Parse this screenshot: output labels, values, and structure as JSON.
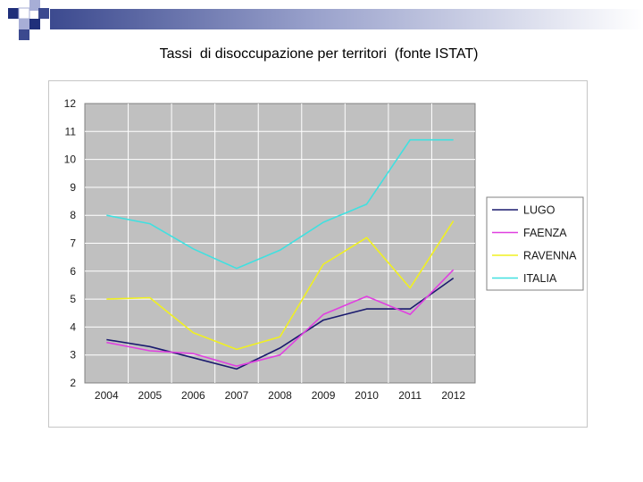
{
  "header": {
    "title": "Tassi  di disoccupazione per territori  (fonte ISTAT)"
  },
  "theme": {
    "deco_dark": "#1f2f7a",
    "deco_light": "#a7aed6",
    "plot_background": "#c0c0c0",
    "gridline": "#ffffff"
  },
  "chart_data": {
    "type": "line",
    "title": "",
    "xlabel": "",
    "ylabel": "",
    "categories": [
      "2004",
      "2005",
      "2006",
      "2007",
      "2008",
      "2009",
      "2010",
      "2011",
      "2012"
    ],
    "ylim": [
      2,
      12
    ],
    "yticks": [
      "2",
      "3",
      "4",
      "5",
      "6",
      "7",
      "8",
      "9",
      "10",
      "11",
      "12"
    ],
    "grid": true,
    "legend_position": "right",
    "series": [
      {
        "name": "LUGO",
        "color": "#1a1a6e",
        "values": [
          3.55,
          3.3,
          2.9,
          2.5,
          3.25,
          4.25,
          4.65,
          4.65,
          5.75
        ]
      },
      {
        "name": "FAENZA",
        "color": "#e040e0",
        "values": [
          3.45,
          3.15,
          3.05,
          2.6,
          3.0,
          4.45,
          5.1,
          4.45,
          6.05
        ]
      },
      {
        "name": "RAVENNA",
        "color": "#f0f020",
        "values": [
          5.0,
          5.05,
          3.8,
          3.2,
          3.65,
          6.25,
          7.2,
          5.4,
          7.8
        ]
      },
      {
        "name": "ITALIA",
        "color": "#40e0e0",
        "values": [
          8.0,
          7.7,
          6.8,
          6.1,
          6.75,
          7.75,
          8.4,
          10.7,
          10.7
        ]
      }
    ]
  }
}
